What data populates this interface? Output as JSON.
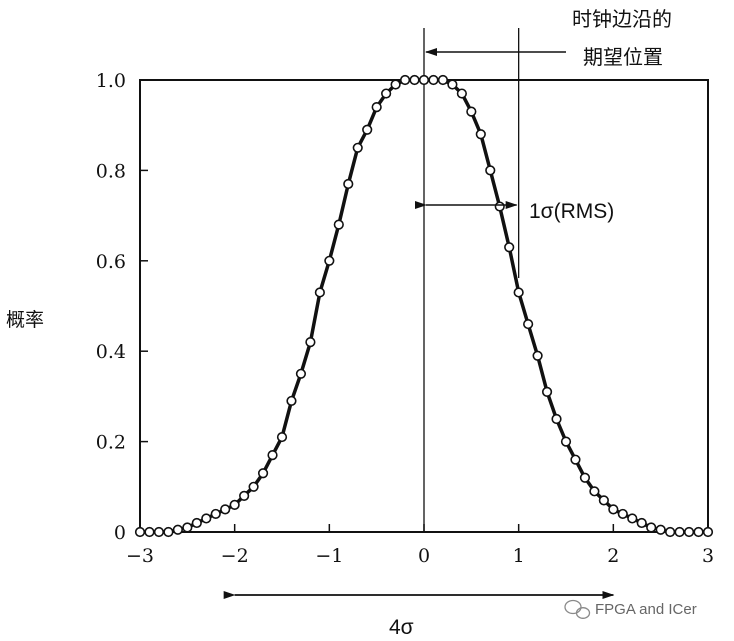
{
  "chart_data": {
    "type": "line",
    "title": "",
    "xlabel": "",
    "ylabel": "概率",
    "xlim": [
      -3,
      3
    ],
    "ylim": [
      0,
      1.0
    ],
    "x_ticks": [
      "−3",
      "−2",
      "−1",
      "0",
      "1",
      "2",
      "3"
    ],
    "y_ticks": [
      "0",
      "0.2",
      "0.4",
      "0.6",
      "0.8",
      "1.0"
    ],
    "grid": false,
    "series": [
      {
        "marker": "open-circle",
        "x": [
          -3.0,
          -2.9,
          -2.8,
          -2.7,
          -2.6,
          -2.5,
          -2.4,
          -2.3,
          -2.2,
          -2.1,
          -2.0,
          -1.9,
          -1.8,
          -1.7,
          -1.6,
          -1.5,
          -1.4,
          -1.3,
          -1.2,
          -1.1,
          -1.0,
          -0.9,
          -0.8,
          -0.7,
          -0.6,
          -0.5,
          -0.4,
          -0.3,
          -0.2,
          -0.1,
          0.0,
          0.1,
          0.2,
          0.3,
          0.4,
          0.5,
          0.6,
          0.7,
          0.8,
          0.9,
          1.0,
          1.1,
          1.2,
          1.3,
          1.4,
          1.5,
          1.6,
          1.7,
          1.8,
          1.9,
          2.0,
          2.1,
          2.2,
          2.3,
          2.4,
          2.5,
          2.6,
          2.7,
          2.8,
          2.9,
          3.0
        ],
        "y": [
          0.0,
          0.0,
          0.0,
          0.0,
          0.005,
          0.01,
          0.02,
          0.03,
          0.04,
          0.05,
          0.06,
          0.08,
          0.1,
          0.13,
          0.17,
          0.21,
          0.29,
          0.35,
          0.42,
          0.53,
          0.6,
          0.68,
          0.77,
          0.85,
          0.89,
          0.94,
          0.97,
          0.99,
          1.0,
          1.0,
          1.0,
          1.0,
          1.0,
          0.99,
          0.97,
          0.93,
          0.88,
          0.8,
          0.72,
          0.63,
          0.53,
          0.46,
          0.39,
          0.31,
          0.25,
          0.2,
          0.16,
          0.12,
          0.09,
          0.07,
          0.05,
          0.04,
          0.03,
          0.02,
          0.01,
          0.005,
          0.0,
          0.0,
          0.0,
          0.0,
          0.0
        ]
      }
    ],
    "annotations": {
      "expected_position_line1": "时钟边沿的",
      "expected_position_line2": "期望位置",
      "sigma_label": "1σ(RMS)",
      "width_label": "4σ",
      "expected_x": 0,
      "sigma_x": 1,
      "width_range": [
        -2,
        2
      ]
    }
  },
  "watermark": "FPGA and ICer"
}
